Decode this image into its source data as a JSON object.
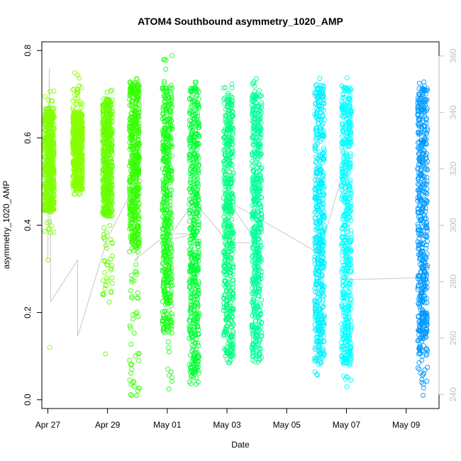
{
  "chart_data": {
    "type": "scatter",
    "title": "ATOM4 Southbound asymmetry_1020_AMP",
    "xlabel": "Date",
    "ylabel": "asymmetry_1020_AMP",
    "x_unit": "days",
    "xlim": [
      "Apr 27 ~ -0.2",
      "May 10"
    ],
    "xlim_days": [
      -0.2,
      13.1
    ],
    "ylim": [
      -0.02,
      0.82
    ],
    "x_ticks": [
      {
        "label": "Apr 27",
        "day": 0
      },
      {
        "label": "Apr 29",
        "day": 2
      },
      {
        "label": "May 01",
        "day": 4
      },
      {
        "label": "May 03",
        "day": 6
      },
      {
        "label": "May 05",
        "day": 8
      },
      {
        "label": "May 07",
        "day": 10
      },
      {
        "label": "May 09",
        "day": 12
      }
    ],
    "y_ticks": [
      0.0,
      0.2,
      0.4,
      0.6,
      0.8
    ],
    "y_tick_labels": [
      "0.0",
      "0.2",
      "0.4",
      "0.6",
      "0.8"
    ],
    "y2_ticks": [
      240,
      260,
      280,
      300,
      320,
      340,
      360
    ],
    "y2_lim": [
      235,
      365
    ],
    "grid": false,
    "legend": "none",
    "clusters": [
      {
        "day": 0.05,
        "color": "#80ff00",
        "core": [
          0.43,
          0.67
        ],
        "lo": 0.38,
        "hi": 0.72,
        "tail": [
          0.12,
          0.32
        ]
      },
      {
        "day": 1.0,
        "color": "#88ff00",
        "core": [
          0.48,
          0.66
        ],
        "lo": 0.47,
        "hi": 0.75,
        "tail": []
      },
      {
        "day": 2.0,
        "color": "#66ff00",
        "core": [
          0.42,
          0.69
        ],
        "lo": 0.22,
        "hi": 0.71,
        "tail": [
          0.105
        ]
      },
      {
        "day": 2.9,
        "color": "#33ff00",
        "core": [
          0.35,
          0.73
        ],
        "lo": 0.0,
        "hi": 0.77,
        "tail": [
          0.01,
          0.03,
          0.07,
          0.1
        ]
      },
      {
        "day": 4.0,
        "color": "#1aff1a",
        "core": [
          0.15,
          0.72
        ],
        "lo": 0.02,
        "hi": 0.79,
        "tail": [
          0.025,
          0.07
        ]
      },
      {
        "day": 4.9,
        "color": "#00ff33",
        "core": [
          0.06,
          0.72
        ],
        "lo": 0.02,
        "hi": 0.73,
        "tail": []
      },
      {
        "day": 6.05,
        "color": "#00ff80",
        "core": [
          0.1,
          0.7
        ],
        "lo": 0.08,
        "hi": 0.73,
        "tail": []
      },
      {
        "day": 7.0,
        "color": "#00ff99",
        "core": [
          0.09,
          0.7
        ],
        "lo": 0.08,
        "hi": 0.75,
        "tail": []
      },
      {
        "day": 10.0,
        "color": "#00ffff",
        "day_alt": 9.95,
        "core": [
          0.08,
          0.72
        ],
        "lo": 0.03,
        "hi": 0.74,
        "tail": [
          0.03
        ]
      },
      {
        "day": 9.1,
        "color": "#00f0ff",
        "core": [
          0.08,
          0.72
        ],
        "lo": 0.03,
        "hi": 0.74,
        "tail": []
      },
      {
        "day": 12.55,
        "color": "#0099ff",
        "core": [
          0.1,
          0.72
        ],
        "lo": 0.01,
        "hi": 0.74,
        "tail": [
          0.01,
          0.04
        ]
      }
    ],
    "trace_days": [
      0.0,
      0.05,
      0.1,
      1.0,
      1.0,
      2.0,
      2.9,
      3.0,
      2.9,
      4.0,
      4.9,
      4.0,
      4.9,
      6.05,
      7.0,
      6.05,
      9.1,
      10.0,
      10.0,
      12.55
    ],
    "trace_values": [
      0.32,
      0.76,
      0.225,
      0.32,
      0.145,
      0.37,
      0.49,
      0.32,
      0.32,
      0.38,
      0.38,
      0.365,
      0.455,
      0.36,
      0.36,
      0.455,
      0.335,
      0.55,
      0.275,
      0.28
    ]
  }
}
